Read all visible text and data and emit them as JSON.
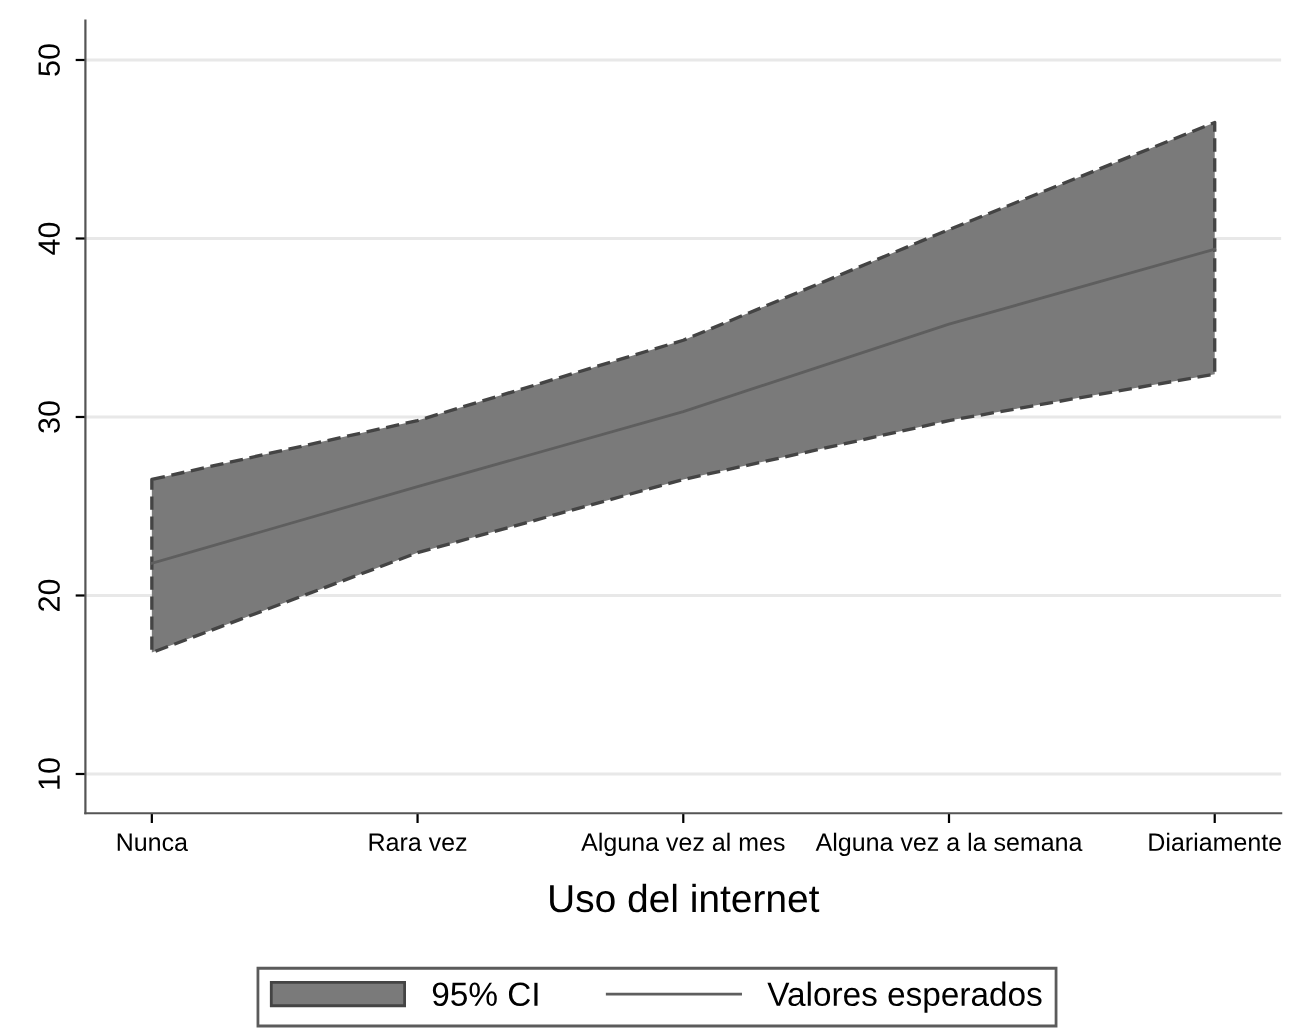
{
  "chart_data": {
    "type": "line",
    "xlabel": "Uso del internet",
    "categories": [
      "Nunca",
      "Rara vez",
      "Alguna vez al mes",
      "Alguna vez a la semana",
      "Diariamente"
    ],
    "series": [
      {
        "name": "Valores esperados",
        "color": "#5e5e5e",
        "line_style": "solid",
        "values": [
          21.8,
          26.1,
          30.3,
          35.2,
          39.4
        ],
        "lower": [
          16.8,
          22.4,
          26.5,
          29.8,
          32.4
        ],
        "upper": [
          26.5,
          29.8,
          34.3,
          40.5,
          46.5
        ]
      }
    ],
    "annotations": [
      "95% CI"
    ],
    "ylim": [
      7.8,
      52.2
    ],
    "yticks": [
      10,
      20,
      30,
      40,
      50
    ],
    "grid": "y",
    "legend": "bottom",
    "marker": "none"
  }
}
